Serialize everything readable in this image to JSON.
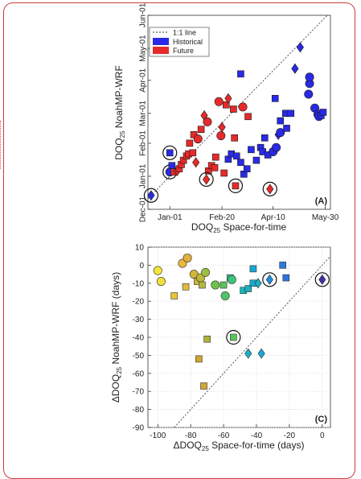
{
  "chart_data": [
    {
      "type": "scatter",
      "panel_label": "(A)",
      "xlabel": {
        "main": "DOQ",
        "sub": "25",
        "rest": " Space-for-time"
      },
      "ylabel": {
        "main": "DOQ",
        "sub": "25",
        "rest": " NoahMP-WRF"
      },
      "x_ticks": [
        "Jan-01",
        "Feb-20",
        "Apr-10",
        "May-30"
      ],
      "y_ticks": [
        "Dec-01",
        "Jan-01",
        "Feb-01",
        "Mar-01",
        "Apr-01",
        "May-01",
        "Jun-01"
      ],
      "xlim": [
        "2000-12-11",
        "2001-06-04"
      ],
      "ylim": [
        "2000-12-01",
        "2001-06-01"
      ],
      "grid": false,
      "legend": {
        "position": "top-left",
        "entries": [
          {
            "label": "1:1 line",
            "kind": "line",
            "color": "#333333"
          },
          {
            "label": "Historical",
            "kind": "patch",
            "color": "#2a2ae6"
          },
          {
            "label": "Future",
            "kind": "patch",
            "color": "#e62a2a"
          }
        ]
      },
      "series": [
        {
          "name": "Historical",
          "color": "#2a2ae6",
          "points": [
            {
              "x": "2000-12-14",
              "y": "2000-12-14",
              "m": "diamond",
              "c": true
            },
            {
              "x": "2001-01-01",
              "y": "2001-01-05",
              "m": "circle",
              "c": true
            },
            {
              "x": "2001-01-01",
              "y": "2001-01-23",
              "m": "square",
              "c": true
            },
            {
              "x": "2001-01-03",
              "y": "2001-01-11",
              "m": "square"
            },
            {
              "x": "2001-02-26",
              "y": "2001-01-17",
              "m": "square"
            },
            {
              "x": "2001-03-01",
              "y": "2001-01-22",
              "m": "square"
            },
            {
              "x": "2001-03-06",
              "y": "2001-01-20",
              "m": "square"
            },
            {
              "x": "2001-03-10",
              "y": "2001-01-14",
              "m": "square"
            },
            {
              "x": "2001-03-13",
              "y": "2001-01-03",
              "m": "square"
            },
            {
              "x": "2001-03-16",
              "y": "2001-01-08",
              "m": "square"
            },
            {
              "x": "2001-03-20",
              "y": "2001-01-26",
              "m": "square"
            },
            {
              "x": "2001-03-25",
              "y": "2001-01-16",
              "m": "square"
            },
            {
              "x": "2001-03-29",
              "y": "2001-01-28",
              "m": "square"
            },
            {
              "x": "2001-03-31",
              "y": "2001-01-24",
              "m": "square"
            },
            {
              "x": "2001-04-02",
              "y": "2001-02-06",
              "m": "square"
            },
            {
              "x": "2001-04-05",
              "y": "2001-01-21",
              "m": "square"
            },
            {
              "x": "2001-04-10",
              "y": "2001-01-24",
              "m": "circle"
            },
            {
              "x": "2001-04-13",
              "y": "2001-01-28",
              "m": "circle"
            },
            {
              "x": "2001-04-15",
              "y": "2001-02-09",
              "m": "diamond"
            },
            {
              "x": "2001-04-17",
              "y": "2001-02-11",
              "m": "circle"
            },
            {
              "x": "2001-04-23",
              "y": "2001-02-15",
              "m": "square"
            },
            {
              "x": "2001-03-10",
              "y": "2001-04-07",
              "m": "square"
            },
            {
              "x": "2001-04-12",
              "y": "2001-03-15",
              "m": "square"
            },
            {
              "x": "2001-04-17",
              "y": "2001-02-22",
              "m": "square"
            },
            {
              "x": "2001-04-22",
              "y": "2001-03-01",
              "m": "square"
            },
            {
              "x": "2001-04-27",
              "y": "2001-03-01",
              "m": "square"
            },
            {
              "x": "2001-05-01",
              "y": "2001-04-12",
              "m": "diamond"
            },
            {
              "x": "2001-05-06",
              "y": "2001-05-02",
              "m": "diamond"
            },
            {
              "x": "2001-05-14",
              "y": "2001-03-19",
              "m": "circle"
            },
            {
              "x": "2001-05-15",
              "y": "2001-03-29",
              "m": "circle"
            },
            {
              "x": "2001-05-15",
              "y": "2001-04-04",
              "m": "circle"
            },
            {
              "x": "2001-05-20",
              "y": "2001-03-06",
              "m": "circle"
            },
            {
              "x": "2001-05-23",
              "y": "2001-02-28",
              "m": "circle"
            },
            {
              "x": "2001-05-24",
              "y": "2001-02-26",
              "m": "circle"
            },
            {
              "x": "2001-05-26",
              "y": "2001-02-27",
              "m": "square"
            },
            {
              "x": "2001-05-28",
              "y": "2001-03-02",
              "m": "square"
            }
          ]
        },
        {
          "name": "Future",
          "color": "#e62a2a",
          "points": [
            {
              "x": "2001-01-05",
              "y": "2001-01-05",
              "m": "square"
            },
            {
              "x": "2001-01-08",
              "y": "2001-01-06",
              "m": "diamond"
            },
            {
              "x": "2001-01-10",
              "y": "2001-01-08",
              "m": "square"
            },
            {
              "x": "2001-01-12",
              "y": "2001-01-12",
              "m": "square"
            },
            {
              "x": "2001-01-14",
              "y": "2001-01-16",
              "m": "square"
            },
            {
              "x": "2001-01-17",
              "y": "2001-01-20",
              "m": "square"
            },
            {
              "x": "2001-01-19",
              "y": "2001-01-22",
              "m": "square"
            },
            {
              "x": "2001-01-20",
              "y": "2001-02-01",
              "m": "square"
            },
            {
              "x": "2001-01-23",
              "y": "2001-01-23",
              "m": "square"
            },
            {
              "x": "2001-01-24",
              "y": "2001-02-09",
              "m": "square"
            },
            {
              "x": "2001-01-26",
              "y": "2001-01-14",
              "m": "diamond"
            },
            {
              "x": "2001-01-28",
              "y": "2001-02-05",
              "m": "circle"
            },
            {
              "x": "2001-01-31",
              "y": "2001-02-14",
              "m": "square"
            },
            {
              "x": "2001-02-03",
              "y": "2001-02-27",
              "m": "diamond"
            },
            {
              "x": "2001-02-06",
              "y": "2001-02-21",
              "m": "circle"
            },
            {
              "x": "2001-02-07",
              "y": "2001-01-06",
              "m": "square"
            },
            {
              "x": "2001-02-10",
              "y": "2001-01-11",
              "m": "square"
            },
            {
              "x": "2001-02-13",
              "y": "2001-01-09",
              "m": "square"
            },
            {
              "x": "2001-02-14",
              "y": "2001-01-19",
              "m": "square"
            },
            {
              "x": "2001-02-17",
              "y": "2001-03-12",
              "m": "circle"
            },
            {
              "x": "2001-02-19",
              "y": "2001-02-08",
              "m": "circle"
            },
            {
              "x": "2001-02-20",
              "y": "2001-02-16",
              "m": "diamond"
            },
            {
              "x": "2001-02-22",
              "y": "2001-01-04",
              "m": "square"
            },
            {
              "x": "2001-02-24",
              "y": "2001-03-09",
              "m": "square"
            },
            {
              "x": "2001-02-26",
              "y": "2001-03-15",
              "m": "diamond"
            },
            {
              "x": "2001-03-03",
              "y": "2001-03-05",
              "m": "square"
            },
            {
              "x": "2001-03-04",
              "y": "2001-02-06",
              "m": "square"
            },
            {
              "x": "2001-03-12",
              "y": "2001-03-07",
              "m": "circle"
            },
            {
              "x": "2001-03-17",
              "y": "2001-02-26",
              "m": "square"
            },
            {
              "x": "2001-02-05",
              "y": "2000-12-29",
              "m": "diamond",
              "c": true
            },
            {
              "x": "2001-03-05",
              "y": "2000-12-23",
              "m": "square",
              "c": true
            },
            {
              "x": "2001-04-07",
              "y": "2000-12-20",
              "m": "diamond",
              "c": true
            }
          ]
        }
      ]
    },
    {
      "type": "scatter",
      "panel_label": "(C)",
      "xlabel": {
        "main": "ΔDOQ",
        "sub": "25",
        "rest": " Space-for-time (days)"
      },
      "ylabel": {
        "main": "ΔDOQ",
        "sub": "25",
        "rest": " NoahMP-WRF (days)"
      },
      "x_ticks": [
        "-100",
        "-80",
        "-60",
        "-40",
        "-20",
        "0"
      ],
      "y_ticks": [
        "10",
        "0",
        "-10",
        "-20",
        "-30",
        "-40",
        "-50",
        "-60",
        "-70",
        "-80",
        "-90"
      ],
      "xlim": [
        -106,
        5
      ],
      "ylim": [
        -90,
        10
      ],
      "grid": true,
      "colormap": "parula",
      "points": [
        {
          "x": -100,
          "y": -3,
          "m": "circle",
          "col": "#f5e53a"
        },
        {
          "x": -98,
          "y": -9,
          "m": "circle",
          "col": "#f1e03a"
        },
        {
          "x": -90,
          "y": -17,
          "m": "square",
          "col": "#e8c53a"
        },
        {
          "x": -85,
          "y": 1,
          "m": "circle",
          "col": "#e9b83a"
        },
        {
          "x": -83,
          "y": -12,
          "m": "square",
          "col": "#e3bb38"
        },
        {
          "x": -82,
          "y": 4,
          "m": "circle",
          "col": "#e3af38"
        },
        {
          "x": -78,
          "y": -5,
          "m": "circle",
          "col": "#d2b53a"
        },
        {
          "x": -76,
          "y": -9,
          "m": "square",
          "col": "#cbb33a"
        },
        {
          "x": -75,
          "y": -52,
          "m": "square",
          "col": "#cfa632"
        },
        {
          "x": -74,
          "y": -7,
          "m": "circle",
          "col": "#bfb83c"
        },
        {
          "x": -73,
          "y": -11,
          "m": "square",
          "col": "#b3b83e"
        },
        {
          "x": -72,
          "y": -67,
          "m": "square",
          "col": "#d1a532"
        },
        {
          "x": -71,
          "y": -4,
          "m": "circle",
          "col": "#9cbd3e"
        },
        {
          "x": -70,
          "y": -41,
          "m": "square",
          "col": "#adb23a"
        },
        {
          "x": -65,
          "y": -11,
          "m": "circle",
          "col": "#6fc249"
        },
        {
          "x": -60,
          "y": -11,
          "m": "square",
          "col": "#5ac45a"
        },
        {
          "x": -59,
          "y": -17,
          "m": "circle",
          "col": "#4ec566"
        },
        {
          "x": -56,
          "y": -7,
          "m": "square",
          "col": "#35c586"
        },
        {
          "x": -55,
          "y": -8,
          "m": "circle",
          "col": "#3cc47a"
        },
        {
          "x": -54,
          "y": -40,
          "m": "square",
          "col": "#58c45a",
          "c": true
        },
        {
          "x": -48,
          "y": -14,
          "m": "square",
          "col": "#1bb5b5"
        },
        {
          "x": -45,
          "y": -13,
          "m": "square",
          "col": "#1bb0c0"
        },
        {
          "x": -45,
          "y": -49,
          "m": "diamond",
          "col": "#19aec8"
        },
        {
          "x": -42,
          "y": -10,
          "m": "square",
          "col": "#18a9d0"
        },
        {
          "x": -42,
          "y": -2,
          "m": "square",
          "col": "#18a5d5"
        },
        {
          "x": -39,
          "y": -10,
          "m": "diamond",
          "col": "#1cb0c0"
        },
        {
          "x": -37,
          "y": -49,
          "m": "diamond",
          "col": "#18a8d2"
        },
        {
          "x": -32,
          "y": -8,
          "m": "diamond",
          "col": "#1b8fde",
          "c": true
        },
        {
          "x": -24,
          "y": 0,
          "m": "square",
          "col": "#2a7ae0"
        },
        {
          "x": -22,
          "y": -7,
          "m": "square",
          "col": "#2f6fe4"
        },
        {
          "x": 0,
          "y": -8,
          "m": "diamond",
          "col": "#3a31a8",
          "c": true
        }
      ]
    }
  ]
}
